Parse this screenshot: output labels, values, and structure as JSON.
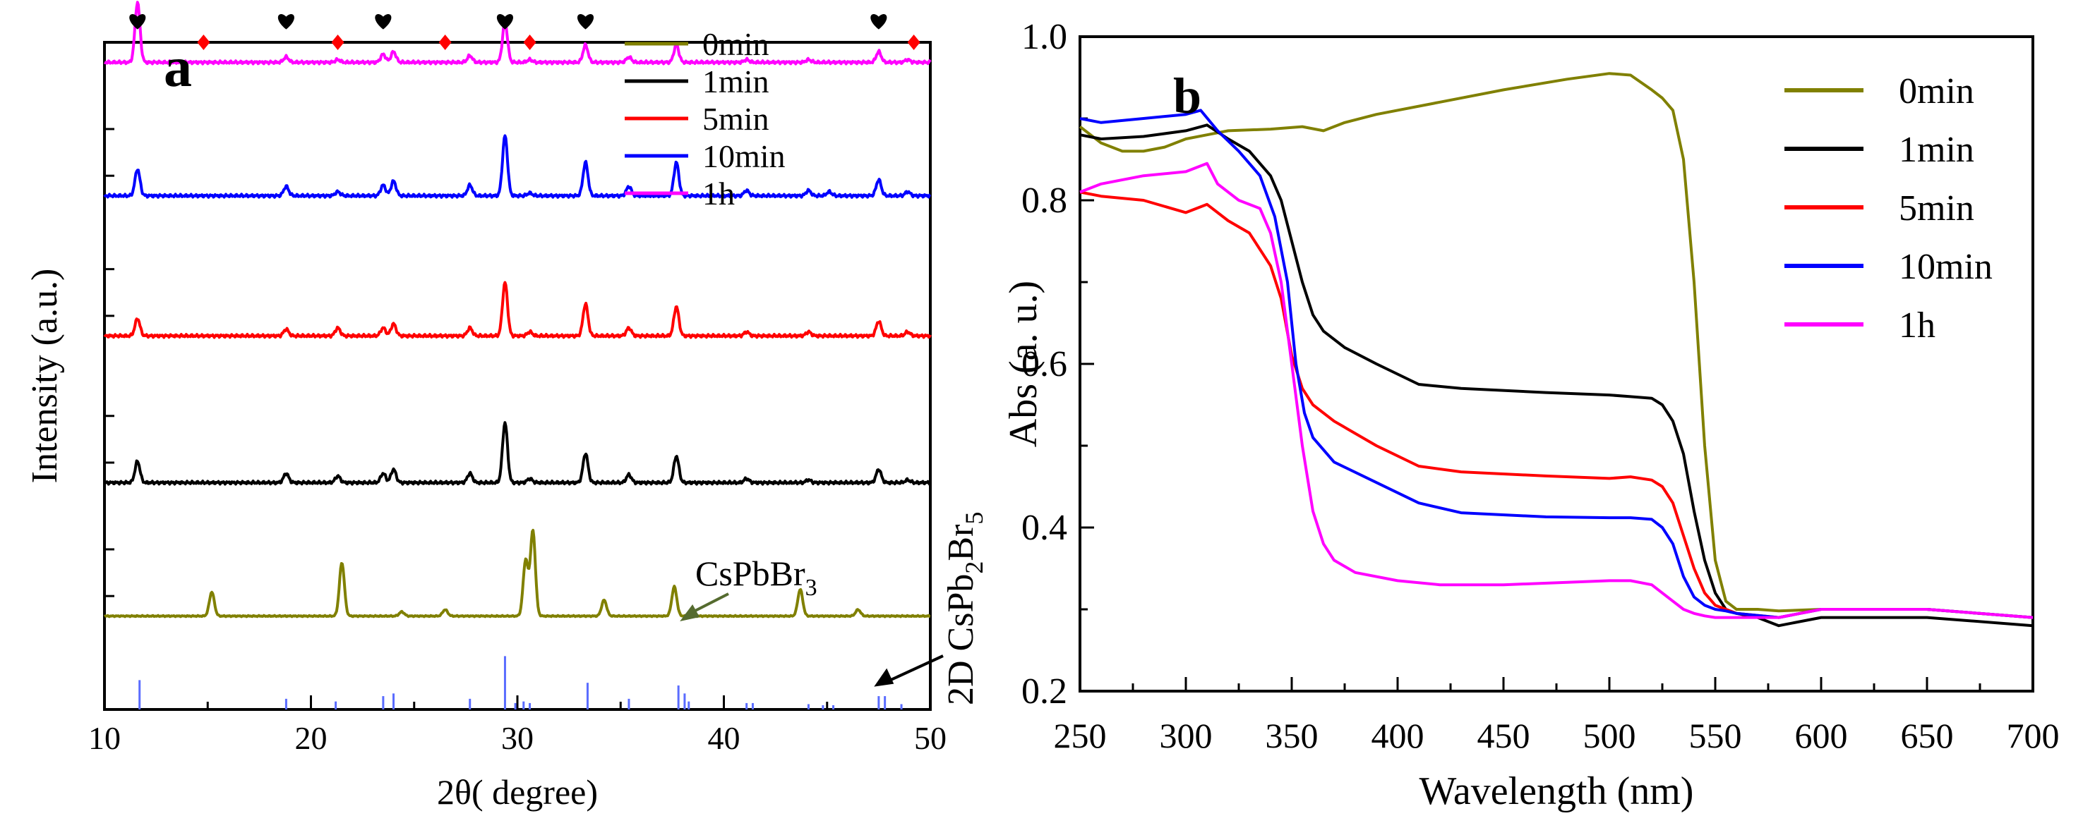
{
  "chart_data": [
    {
      "panel": "a",
      "type": "line",
      "panel_label": "a",
      "xlabel": "2θ(  degree)",
      "ylabel": "Intensity (a.u.)",
      "xlim": [
        10,
        50
      ],
      "xticks": [
        10,
        20,
        30,
        40,
        50
      ],
      "grid": false,
      "legend_position": "top-right",
      "series": [
        {
          "name": "0min",
          "color": "#808000",
          "baseline": 0.14,
          "scale": 0.08,
          "peaks": [
            [
              15.2,
              0.45
            ],
            [
              21.5,
              1.0
            ],
            [
              24.4,
              0.08
            ],
            [
              26.5,
              0.12
            ],
            [
              30.4,
              1.05
            ],
            [
              30.75,
              1.6
            ],
            [
              34.2,
              0.3
            ],
            [
              37.6,
              0.55
            ],
            [
              43.7,
              0.5
            ],
            [
              46.5,
              0.12
            ]
          ]
        },
        {
          "name": "1min",
          "color": "#000000",
          "baseline": 0.34,
          "scale": 0.2,
          "peaks": [
            [
              11.6,
              0.16
            ],
            [
              18.8,
              0.07
            ],
            [
              21.3,
              0.05
            ],
            [
              23.5,
              0.07
            ],
            [
              24.0,
              0.1
            ],
            [
              27.7,
              0.07
            ],
            [
              29.4,
              0.45
            ],
            [
              30.6,
              0.03
            ],
            [
              33.3,
              0.22
            ],
            [
              35.4,
              0.06
            ],
            [
              37.7,
              0.2
            ],
            [
              41.1,
              0.03
            ],
            [
              44.1,
              0.02
            ],
            [
              47.5,
              0.1
            ],
            [
              48.9,
              0.02
            ]
          ]
        },
        {
          "name": "5min",
          "color": "#ff0000",
          "baseline": 0.56,
          "scale": 0.2,
          "peaks": [
            [
              11.6,
              0.13
            ],
            [
              18.8,
              0.05
            ],
            [
              21.3,
              0.06
            ],
            [
              23.5,
              0.06
            ],
            [
              24.0,
              0.09
            ],
            [
              27.7,
              0.06
            ],
            [
              29.4,
              0.4
            ],
            [
              30.6,
              0.03
            ],
            [
              33.3,
              0.24
            ],
            [
              35.4,
              0.06
            ],
            [
              37.7,
              0.22
            ],
            [
              41.1,
              0.03
            ],
            [
              44.1,
              0.03
            ],
            [
              47.5,
              0.11
            ],
            [
              48.9,
              0.03
            ]
          ]
        },
        {
          "name": "10min",
          "color": "#0000ff",
          "baseline": 0.77,
          "scale": 0.2,
          "peaks": [
            [
              11.6,
              0.2
            ],
            [
              18.8,
              0.07
            ],
            [
              21.3,
              0.03
            ],
            [
              23.5,
              0.08
            ],
            [
              24.0,
              0.11
            ],
            [
              27.7,
              0.08
            ],
            [
              29.4,
              0.45
            ],
            [
              30.6,
              0.02
            ],
            [
              33.3,
              0.25
            ],
            [
              35.4,
              0.07
            ],
            [
              37.7,
              0.25
            ],
            [
              41.1,
              0.04
            ],
            [
              44.1,
              0.04
            ],
            [
              45.1,
              0.03
            ],
            [
              47.5,
              0.12
            ],
            [
              48.9,
              0.03
            ]
          ]
        },
        {
          "name": "1h",
          "color": "#ff00ff",
          "baseline": 0.97,
          "scale": 0.2,
          "peaks": [
            [
              11.6,
              0.45
            ],
            [
              18.8,
              0.04
            ],
            [
              21.3,
              0.02
            ],
            [
              23.5,
              0.06
            ],
            [
              24.0,
              0.08
            ],
            [
              27.7,
              0.05
            ],
            [
              29.4,
              0.3
            ],
            [
              30.6,
              0.02
            ],
            [
              33.3,
              0.13
            ],
            [
              35.4,
              0.04
            ],
            [
              37.7,
              0.13
            ],
            [
              41.1,
              0.02
            ],
            [
              44.1,
              0.02
            ],
            [
              47.5,
              0.08
            ],
            [
              48.9,
              0.02
            ]
          ]
        }
      ],
      "reference_pattern": {
        "name": "2D CsPb2Br5",
        "color": "#5a6cff",
        "sticks": [
          [
            11.7,
            0.55
          ],
          [
            18.8,
            0.2
          ],
          [
            21.2,
            0.15
          ],
          [
            23.5,
            0.25
          ],
          [
            24.0,
            0.3
          ],
          [
            27.7,
            0.2
          ],
          [
            29.4,
            1.0
          ],
          [
            29.9,
            0.12
          ],
          [
            30.3,
            0.15
          ],
          [
            30.6,
            0.12
          ],
          [
            33.4,
            0.5
          ],
          [
            35.4,
            0.2
          ],
          [
            37.8,
            0.45
          ],
          [
            38.1,
            0.3
          ],
          [
            38.3,
            0.15
          ],
          [
            41.1,
            0.12
          ],
          [
            41.4,
            0.12
          ],
          [
            44.1,
            0.1
          ],
          [
            44.8,
            0.08
          ],
          [
            45.3,
            0.08
          ],
          [
            47.5,
            0.25
          ],
          [
            47.8,
            0.25
          ],
          [
            48.6,
            0.1
          ]
        ]
      },
      "markers": {
        "heart": [
          11.6,
          18.8,
          23.5,
          29.4,
          33.3,
          47.5
        ],
        "diamond": [
          14.8,
          21.3,
          26.5,
          30.6,
          49.2
        ]
      },
      "annotations": [
        {
          "text_main": "CsPbBr",
          "text_sub": "3",
          "arrow_to": [
            37.8,
            0.13
          ]
        },
        {
          "text_main": "2D CsPb",
          "sub1": "2",
          "mid": "Br",
          "sub2": "5",
          "arrow_to": [
            47.0,
            0.03
          ]
        }
      ]
    },
    {
      "panel": "b",
      "type": "line",
      "panel_label": "b",
      "xlabel": "Wavelength (nm)",
      "ylabel": "Abs (a. u.)",
      "xlim": [
        250,
        700
      ],
      "ylim": [
        0.2,
        1.0
      ],
      "xticks": [
        250,
        300,
        350,
        400,
        450,
        500,
        550,
        600,
        650,
        700
      ],
      "yticks": [
        0.2,
        0.4,
        0.6,
        0.8,
        1.0
      ],
      "grid": false,
      "legend_position": "top-right",
      "series": [
        {
          "name": "0min",
          "color": "#808000",
          "x": [
            250,
            260,
            270,
            280,
            290,
            300,
            310,
            320,
            340,
            355,
            365,
            375,
            390,
            420,
            450,
            480,
            500,
            510,
            520,
            525,
            530,
            535,
            540,
            545,
            550,
            555,
            560,
            570,
            580,
            600,
            650,
            700
          ],
          "y": [
            0.89,
            0.87,
            0.86,
            0.86,
            0.865,
            0.875,
            0.88,
            0.885,
            0.887,
            0.89,
            0.885,
            0.895,
            0.905,
            0.92,
            0.935,
            0.948,
            0.955,
            0.953,
            0.935,
            0.925,
            0.91,
            0.85,
            0.7,
            0.5,
            0.36,
            0.31,
            0.3,
            0.3,
            0.298,
            0.3,
            0.3,
            0.29
          ]
        },
        {
          "name": "1min",
          "color": "#000000",
          "x": [
            250,
            260,
            280,
            300,
            310,
            320,
            330,
            340,
            345,
            350,
            355,
            360,
            365,
            375,
            390,
            410,
            430,
            470,
            500,
            510,
            520,
            525,
            530,
            535,
            540,
            545,
            550,
            555,
            560,
            570,
            580,
            600,
            650,
            700
          ],
          "y": [
            0.88,
            0.875,
            0.878,
            0.885,
            0.892,
            0.875,
            0.86,
            0.83,
            0.8,
            0.75,
            0.7,
            0.66,
            0.64,
            0.62,
            0.6,
            0.575,
            0.57,
            0.565,
            0.562,
            0.56,
            0.558,
            0.55,
            0.53,
            0.49,
            0.42,
            0.36,
            0.32,
            0.3,
            0.295,
            0.29,
            0.28,
            0.29,
            0.29,
            0.28
          ]
        },
        {
          "name": "5min",
          "color": "#ff0000",
          "x": [
            250,
            260,
            280,
            300,
            310,
            320,
            330,
            340,
            345,
            350,
            355,
            360,
            370,
            390,
            410,
            430,
            470,
            500,
            510,
            520,
            525,
            530,
            535,
            540,
            545,
            550,
            555,
            560,
            580,
            600,
            650,
            700
          ],
          "y": [
            0.81,
            0.805,
            0.8,
            0.785,
            0.795,
            0.775,
            0.76,
            0.72,
            0.68,
            0.61,
            0.57,
            0.55,
            0.53,
            0.5,
            0.475,
            0.468,
            0.463,
            0.46,
            0.462,
            0.458,
            0.45,
            0.43,
            0.39,
            0.35,
            0.32,
            0.305,
            0.3,
            0.295,
            0.29,
            0.3,
            0.3,
            0.29
          ]
        },
        {
          "name": "10min",
          "color": "#0000ff",
          "x": [
            250,
            260,
            280,
            300,
            307,
            315,
            325,
            335,
            342,
            348,
            352,
            356,
            360,
            370,
            390,
            410,
            430,
            470,
            500,
            510,
            520,
            525,
            530,
            535,
            540,
            545,
            550,
            555,
            560,
            580,
            600,
            650,
            700
          ],
          "y": [
            0.9,
            0.895,
            0.9,
            0.905,
            0.91,
            0.885,
            0.86,
            0.83,
            0.78,
            0.7,
            0.6,
            0.54,
            0.51,
            0.48,
            0.455,
            0.43,
            0.418,
            0.413,
            0.412,
            0.412,
            0.41,
            0.4,
            0.38,
            0.34,
            0.315,
            0.305,
            0.3,
            0.298,
            0.295,
            0.29,
            0.3,
            0.3,
            0.29
          ]
        },
        {
          "name": "1h",
          "color": "#ff00ff",
          "x": [
            250,
            260,
            280,
            300,
            310,
            315,
            325,
            335,
            340,
            345,
            350,
            355,
            360,
            365,
            370,
            380,
            400,
            420,
            450,
            480,
            500,
            510,
            520,
            525,
            530,
            535,
            540,
            545,
            550,
            560,
            580,
            600,
            650,
            700
          ],
          "y": [
            0.81,
            0.82,
            0.83,
            0.835,
            0.845,
            0.82,
            0.8,
            0.79,
            0.76,
            0.7,
            0.6,
            0.5,
            0.42,
            0.38,
            0.36,
            0.345,
            0.335,
            0.33,
            0.33,
            0.333,
            0.335,
            0.335,
            0.33,
            0.32,
            0.31,
            0.3,
            0.295,
            0.292,
            0.29,
            0.29,
            0.29,
            0.3,
            0.3,
            0.29
          ]
        }
      ]
    }
  ]
}
